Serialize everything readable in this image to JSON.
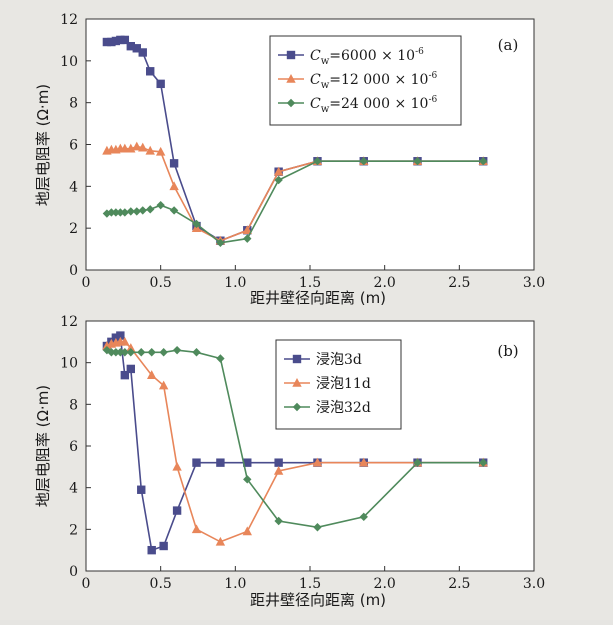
{
  "chart_data": [
    {
      "type": "line",
      "panel_label": "(a)",
      "xlabel": "距井壁径向距离 (m)",
      "ylabel": "地层电阻率 (Ω·m)",
      "xlim": [
        0,
        3.0
      ],
      "ylim": [
        0,
        12
      ],
      "xticks": [
        "0",
        "0.5",
        "1.0",
        "1.5",
        "2.0",
        "2.5",
        "3.0"
      ],
      "yticks": [
        "0",
        "2",
        "4",
        "6",
        "8",
        "10",
        "12"
      ],
      "grid": false,
      "legend_position": "top-right",
      "series": [
        {
          "name": "Cw=6000 × 10⁻⁶",
          "name_parts": {
            "sym": "C",
            "sub": "w",
            "rest": "=6000 × 10",
            "sup": "-6"
          },
          "color": "#4a4c8c",
          "marker": "square",
          "x": [
            0.14,
            0.17,
            0.2,
            0.23,
            0.26,
            0.3,
            0.34,
            0.38,
            0.43,
            0.5,
            0.59,
            0.74,
            0.9,
            1.08,
            1.29,
            1.55,
            1.86,
            2.22,
            2.66
          ],
          "y": [
            10.9,
            10.9,
            10.95,
            11.0,
            11.0,
            10.7,
            10.6,
            10.4,
            9.5,
            8.9,
            5.1,
            2.1,
            1.4,
            1.9,
            4.7,
            5.2,
            5.2,
            5.2,
            5.2
          ]
        },
        {
          "name": "Cw=12 000 × 10⁻⁶",
          "name_parts": {
            "sym": "C",
            "sub": "w",
            "rest": "=12 000 × 10",
            "sup": "-6"
          },
          "color": "#e8865a",
          "marker": "triangle",
          "x": [
            0.14,
            0.17,
            0.2,
            0.23,
            0.26,
            0.3,
            0.34,
            0.38,
            0.43,
            0.5,
            0.59,
            0.74,
            0.9,
            1.08,
            1.29,
            1.55,
            1.86,
            2.22,
            2.66
          ],
          "y": [
            5.7,
            5.75,
            5.75,
            5.8,
            5.8,
            5.8,
            5.9,
            5.85,
            5.7,
            5.65,
            4.0,
            2.0,
            1.4,
            1.9,
            4.7,
            5.2,
            5.2,
            5.2,
            5.2
          ]
        },
        {
          "name": "Cw=24 000 × 10⁻⁶",
          "name_parts": {
            "sym": "C",
            "sub": "w",
            "rest": "=24 000 × 10",
            "sup": "-6"
          },
          "color": "#4f8a5c",
          "marker": "diamond",
          "x": [
            0.14,
            0.17,
            0.2,
            0.23,
            0.26,
            0.3,
            0.34,
            0.38,
            0.43,
            0.5,
            0.59,
            0.74,
            0.9,
            1.08,
            1.29,
            1.55,
            1.86,
            2.22,
            2.66
          ],
          "y": [
            2.7,
            2.75,
            2.75,
            2.75,
            2.75,
            2.8,
            2.8,
            2.85,
            2.9,
            3.1,
            2.85,
            2.2,
            1.3,
            1.5,
            4.3,
            5.2,
            5.2,
            5.2,
            5.2
          ]
        }
      ]
    },
    {
      "type": "line",
      "panel_label": "(b)",
      "xlabel": "距井壁径向距离 (m)",
      "ylabel": "地层电阻率 (Ω·m)",
      "xlim": [
        0,
        3.0
      ],
      "ylim": [
        0,
        12
      ],
      "xticks": [
        "0",
        "0.5",
        "1.0",
        "1.5",
        "2.0",
        "2.5",
        "3.0"
      ],
      "yticks": [
        "0",
        "2",
        "4",
        "6",
        "8",
        "10",
        "12"
      ],
      "grid": false,
      "legend_position": "top-right",
      "series": [
        {
          "name": "浸泡3d",
          "color": "#4a4c8c",
          "marker": "square",
          "x": [
            0.14,
            0.17,
            0.2,
            0.23,
            0.26,
            0.3,
            0.37,
            0.44,
            0.52,
            0.61,
            0.74,
            0.9,
            1.08,
            1.29,
            1.55,
            1.86,
            2.22,
            2.66
          ],
          "y": [
            10.8,
            11.0,
            11.2,
            11.3,
            9.4,
            9.7,
            3.9,
            1.0,
            1.2,
            2.9,
            5.2,
            5.2,
            5.2,
            5.2,
            5.2,
            5.2,
            5.2,
            5.2
          ]
        },
        {
          "name": "浸泡11d",
          "color": "#e8865a",
          "marker": "triangle",
          "x": [
            0.14,
            0.17,
            0.2,
            0.23,
            0.26,
            0.3,
            0.44,
            0.52,
            0.61,
            0.74,
            0.9,
            1.08,
            1.29,
            1.55,
            1.86,
            2.22,
            2.66
          ],
          "y": [
            10.8,
            10.9,
            10.95,
            11.0,
            11.0,
            10.7,
            9.4,
            8.9,
            5.0,
            2.0,
            1.4,
            1.9,
            4.8,
            5.2,
            5.2,
            5.2,
            5.2
          ]
        },
        {
          "name": "浸泡32d",
          "color": "#4f8a5c",
          "marker": "diamond",
          "x": [
            0.14,
            0.17,
            0.2,
            0.23,
            0.26,
            0.3,
            0.37,
            0.44,
            0.52,
            0.61,
            0.74,
            0.9,
            1.08,
            1.29,
            1.55,
            1.86,
            2.22,
            2.66
          ],
          "y": [
            10.6,
            10.5,
            10.5,
            10.5,
            10.5,
            10.5,
            10.5,
            10.5,
            10.5,
            10.6,
            10.5,
            10.2,
            4.4,
            2.4,
            2.1,
            2.6,
            5.2,
            5.2
          ]
        }
      ]
    }
  ]
}
